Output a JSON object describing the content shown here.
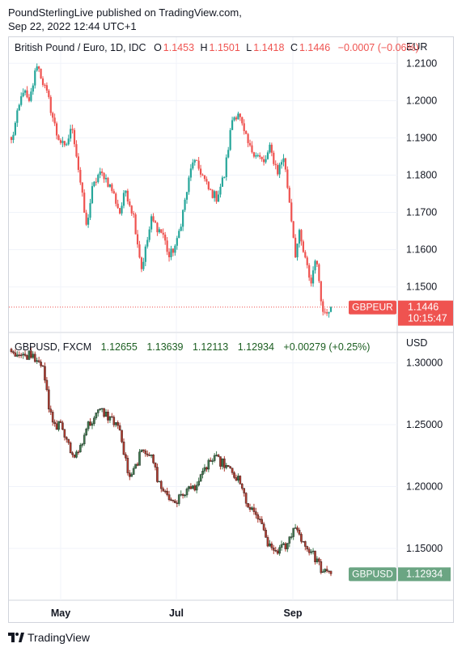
{
  "header": {
    "line1": "PoundSterlingLive published on TradingView.com,",
    "line2": "Sep 22, 2022 12:44 UTC+1"
  },
  "colors": {
    "up": "#26a69a",
    "down": "#ef5350",
    "up2": "#6ba583",
    "down2": "#d75442",
    "grid": "#f0f3fa",
    "border": "#d1d4dc"
  },
  "footer": {
    "brand": "TradingView",
    "logo_icon": "tradingview-logo-icon"
  },
  "chart_data": [
    {
      "type": "candlestick",
      "symbol": "British Pound / Euro, 1D, IDC",
      "currency": "EUR",
      "ohlc_labels": {
        "o": "O",
        "h": "H",
        "l": "L",
        "c": "C"
      },
      "ohlc": {
        "open": "1.1453",
        "high": "1.1501",
        "low": "1.1418",
        "close": "1.1446",
        "change": "−0.0007 (−0.06%)"
      },
      "y_ticks": [
        "1.2100",
        "1.2000",
        "1.1900",
        "1.1800",
        "1.1700",
        "1.1600",
        "1.1500"
      ],
      "ylim": [
        1.138,
        1.217
      ],
      "last_price": {
        "symbol": "GBPEUR",
        "price": "1.1446",
        "countdown": "10:15:47",
        "value": 1.1446
      },
      "key_points": [
        [
          0,
          1.189
        ],
        [
          6,
          1.203
        ],
        [
          9,
          1.199
        ],
        [
          13,
          1.21
        ],
        [
          16,
          1.205
        ],
        [
          19,
          1.2
        ],
        [
          23,
          1.191
        ],
        [
          27,
          1.187
        ],
        [
          31,
          1.193
        ],
        [
          35,
          1.178
        ],
        [
          38,
          1.166
        ],
        [
          41,
          1.176
        ],
        [
          44,
          1.18
        ],
        [
          47,
          1.18
        ],
        [
          51,
          1.176
        ],
        [
          55,
          1.17
        ],
        [
          58,
          1.176
        ],
        [
          62,
          1.169
        ],
        [
          66,
          1.155
        ],
        [
          68,
          1.16
        ],
        [
          71,
          1.168
        ],
        [
          74,
          1.166
        ],
        [
          77,
          1.164
        ],
        [
          80,
          1.158
        ],
        [
          84,
          1.162
        ],
        [
          88,
          1.173
        ],
        [
          92,
          1.184
        ],
        [
          96,
          1.181
        ],
        [
          100,
          1.176
        ],
        [
          104,
          1.174
        ],
        [
          108,
          1.18
        ],
        [
          112,
          1.195
        ],
        [
          115,
          1.197
        ],
        [
          118,
          1.191
        ],
        [
          121,
          1.187
        ],
        [
          124,
          1.186
        ],
        [
          128,
          1.183
        ],
        [
          131,
          1.187
        ],
        [
          135,
          1.181
        ],
        [
          138,
          1.185
        ],
        [
          141,
          1.173
        ],
        [
          144,
          1.159
        ],
        [
          146,
          1.164
        ],
        [
          149,
          1.157
        ],
        [
          152,
          1.151
        ],
        [
          154,
          1.158
        ],
        [
          156,
          1.152
        ],
        [
          158,
          1.143
        ],
        [
          160,
          1.144
        ],
        [
          162,
          1.1446
        ]
      ]
    },
    {
      "type": "candlestick",
      "symbol": "GBPUSD, FXCM",
      "currency": "USD",
      "ohlc": {
        "open": "1.12655",
        "high": "1.13639",
        "low": "1.12113",
        "close": "1.12934",
        "change": "+0.00279 (+0.25%)"
      },
      "y_ticks": [
        "1.30000",
        "1.25000",
        "1.20000",
        "1.15000"
      ],
      "ylim": [
        1.108,
        1.324
      ],
      "x_ticks": [
        "May",
        "Jul",
        "Sep"
      ],
      "last_price": {
        "symbol": "GBPUSD",
        "price": "1.12934",
        "value": 1.12934
      },
      "key_points": [
        [
          0,
          1.31
        ],
        [
          6,
          1.305
        ],
        [
          10,
          1.308
        ],
        [
          13,
          1.303
        ],
        [
          16,
          1.3
        ],
        [
          19,
          1.262
        ],
        [
          22,
          1.248
        ],
        [
          25,
          1.252
        ],
        [
          28,
          1.236
        ],
        [
          31,
          1.225
        ],
        [
          34,
          1.228
        ],
        [
          38,
          1.248
        ],
        [
          42,
          1.255
        ],
        [
          45,
          1.262
        ],
        [
          48,
          1.258
        ],
        [
          51,
          1.254
        ],
        [
          54,
          1.25
        ],
        [
          57,
          1.228
        ],
        [
          60,
          1.205
        ],
        [
          62,
          1.212
        ],
        [
          65,
          1.225
        ],
        [
          68,
          1.228
        ],
        [
          71,
          1.228
        ],
        [
          74,
          1.205
        ],
        [
          77,
          1.198
        ],
        [
          80,
          1.19
        ],
        [
          84,
          1.188
        ],
        [
          88,
          1.196
        ],
        [
          92,
          1.199
        ],
        [
          96,
          1.206
        ],
        [
          100,
          1.22
        ],
        [
          104,
          1.222
        ],
        [
          108,
          1.218
        ],
        [
          112,
          1.21
        ],
        [
          115,
          1.205
        ],
        [
          118,
          1.193
        ],
        [
          121,
          1.18
        ],
        [
          124,
          1.178
        ],
        [
          128,
          1.163
        ],
        [
          131,
          1.15
        ],
        [
          134,
          1.148
        ],
        [
          137,
          1.15
        ],
        [
          140,
          1.152
        ],
        [
          143,
          1.168
        ],
        [
          146,
          1.162
        ],
        [
          149,
          1.152
        ],
        [
          152,
          1.147
        ],
        [
          155,
          1.14
        ],
        [
          158,
          1.13
        ],
        [
          162,
          1.12934
        ]
      ]
    }
  ]
}
